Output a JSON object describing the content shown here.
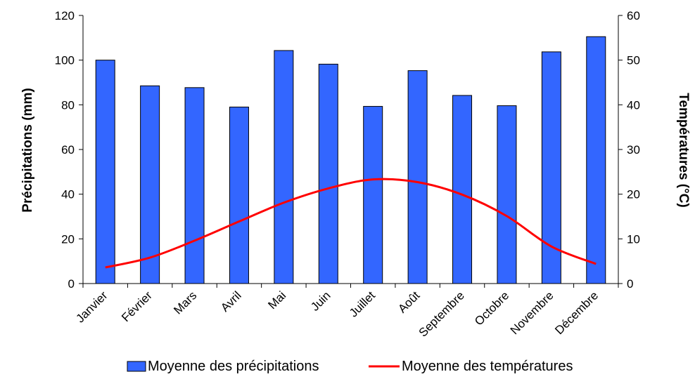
{
  "chart_data": {
    "type": "bar",
    "categories": [
      "Janvier",
      "Février",
      "Mars",
      "Avril",
      "Mai",
      "Juin",
      "Juillet",
      "Août",
      "Septembre",
      "Octobre",
      "Novembre",
      "Décembre"
    ],
    "series": [
      {
        "name": "Moyenne des précipitations",
        "type": "bar",
        "axis": "left",
        "color": "#3366ff",
        "values": [
          100,
          88.5,
          87.7,
          79,
          104.3,
          98.2,
          79.3,
          95.3,
          84.2,
          79.6,
          103.7,
          110.5
        ]
      },
      {
        "name": "Moyenne des températures",
        "type": "line",
        "axis": "right",
        "color": "#ff0000",
        "values": [
          3.6,
          5.8,
          9.6,
          13.9,
          18.1,
          21.3,
          23.3,
          22.7,
          19.9,
          15.1,
          8.3,
          4.4
        ]
      }
    ],
    "ylabel": "Précipitations (mm)",
    "y2label": "Températures (°C)",
    "ylim": [
      0,
      120
    ],
    "y2lim": [
      0,
      60
    ],
    "yticks": [
      "0",
      "20",
      "40",
      "60",
      "80",
      "100",
      "120"
    ],
    "y2ticks": [
      "0",
      "10",
      "20",
      "30",
      "40",
      "50",
      "60"
    ],
    "grid": false,
    "legend": "bottom"
  }
}
